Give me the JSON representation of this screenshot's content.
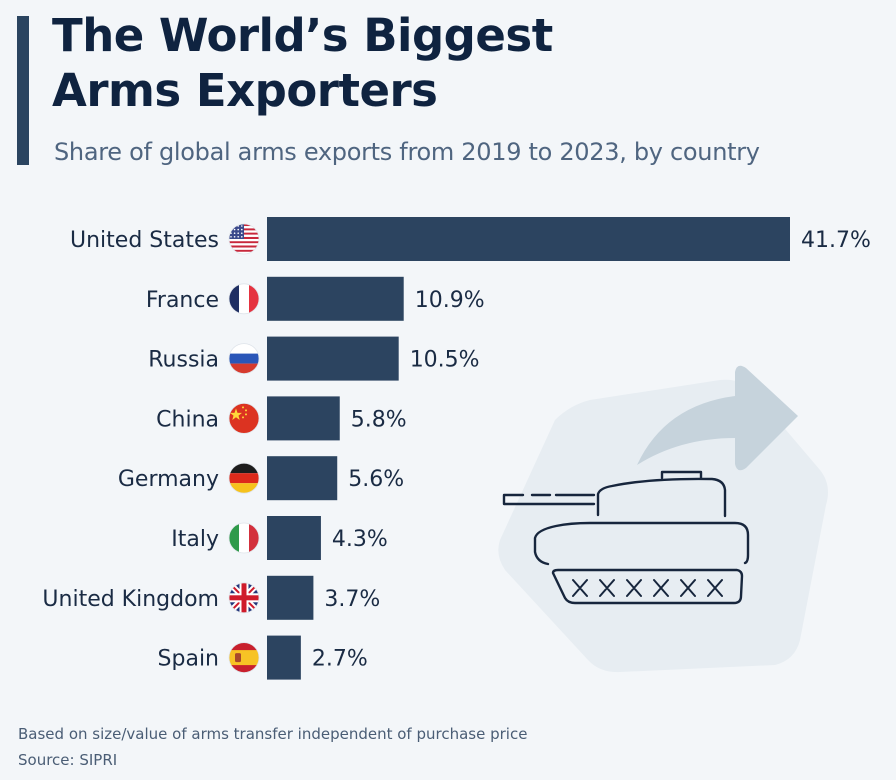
{
  "header": {
    "title_line1": "The World’s Biggest",
    "title_line2": "Arms Exporters",
    "subtitle": "Share of global arms exports from 2019 to 2023, by country"
  },
  "footer": {
    "note": "Based on size/value of arms transfer independent of purchase price",
    "source": "Source: SIPRI"
  },
  "colors": {
    "bar": "#2c4460",
    "background": "#f3f6f9",
    "title": "#0f2340",
    "subtitle": "#4f6580",
    "arrow": "#c6d3dc",
    "hexagon": "#e7edf2",
    "tank_outline": "#17263d"
  },
  "illustration": {
    "icon": "tank-with-export-arrow"
  },
  "chart_data": {
    "type": "bar",
    "orientation": "horizontal",
    "title": "The World’s Biggest Arms Exporters",
    "subtitle": "Share of global arms exports from 2019 to 2023, by country",
    "categories": [
      "United States",
      "France",
      "Russia",
      "China",
      "Germany",
      "Italy",
      "United Kingdom",
      "Spain"
    ],
    "values": [
      41.7,
      10.9,
      10.5,
      5.8,
      5.6,
      4.3,
      3.7,
      2.7
    ],
    "value_labels": [
      "41.7%",
      "10.9%",
      "10.5%",
      "5.8%",
      "5.6%",
      "4.3%",
      "3.7%",
      "2.7%"
    ],
    "flags": [
      "us",
      "fr",
      "ru",
      "cn",
      "de",
      "it",
      "gb",
      "es"
    ],
    "unit": "%",
    "xlabel": "",
    "ylabel": "",
    "xlim": [
      0,
      41.7
    ],
    "grid": false,
    "legend": "none"
  }
}
